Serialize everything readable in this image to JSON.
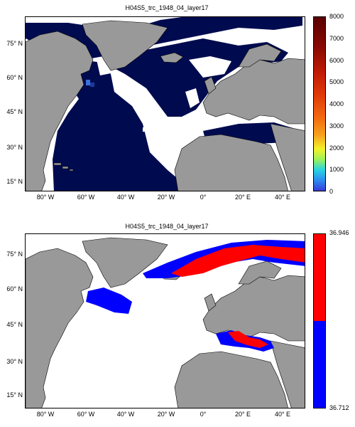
{
  "panels": [
    {
      "title": "H04S5_trc_1948_04_layer17",
      "lat_ticks": [
        "75° N",
        "60° N",
        "45° N",
        "30° N",
        "15° N"
      ],
      "lon_ticks": [
        "80° W",
        "60° W",
        "40° W",
        "20° W",
        "0°",
        "20° E",
        "40° E"
      ],
      "colorbar": {
        "type": "continuous",
        "ticks": [
          "8000",
          "7000",
          "6000",
          "5000",
          "4000",
          "3000",
          "2000",
          "1000",
          "0"
        ],
        "min": 0,
        "max": 8000
      }
    },
    {
      "title": "H04S5_trc_1948_04_layer17",
      "lat_ticks": [
        "75° N",
        "60° N",
        "45° N",
        "30° N",
        "15° N"
      ],
      "lon_ticks": [
        "80° W",
        "60° W",
        "40° W",
        "20° W",
        "0°",
        "20° E",
        "40° E"
      ],
      "colorbar": {
        "type": "binary",
        "top_label": "36.946",
        "bottom_label": "36.712",
        "colors": [
          "#ff0000",
          "#0000ff"
        ]
      }
    }
  ],
  "colors": {
    "land": "#999999",
    "ocean_field": "#000b4f",
    "missing": "#ffffff",
    "high": "#ff0000",
    "low": "#0000ff"
  }
}
